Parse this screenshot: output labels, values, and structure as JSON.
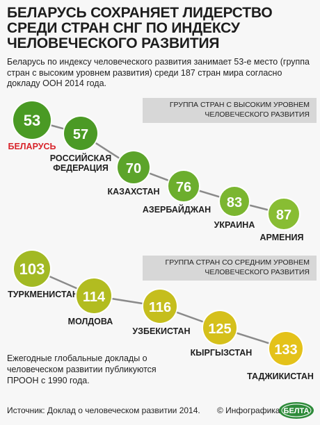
{
  "title": "БЕЛАРУСЬ СОХРАНЯЕТ ЛИДЕРСТВО СРЕДИ СТРАН СНГ ПО ИНДЕКСУ ЧЕЛОВЕЧЕСКОГО РАЗВИТИЯ",
  "subtitle": "Беларусь по индексу человеческого развития занимает 53-е место (группа стран с высоким уровнем развития) среди 187 стран мира согласно докладу ООН 2014 года.",
  "groups": {
    "high": "ГРУППА СТРАН С ВЫСОКИМ УРОВНЕМ ЧЕЛОВЕЧЕСКОГО РАЗВИТИЯ",
    "medium": "ГРУППА СТРАН СО СРЕДНИМ УРОВНЕМ ЧЕЛОВЕЧЕСКОГО РАЗВИТИЯ"
  },
  "note": "Ежегодные глобальные доклады о человеческом развитии публикуются ПРООН с 1990 года.",
  "footer": {
    "source": "Источник: Доклад о человеческом развитии 2014.",
    "credit": "© Инфографика",
    "logo_text": "БЕЛТА"
  },
  "colors": {
    "highlight": "#d8232a",
    "dark_green": "#3d8c1f",
    "light_green": "#8bbf30",
    "olive": "#a6b820",
    "yellow": "#e8c01a",
    "band": "#d7d7d7"
  },
  "chart_data": {
    "type": "scatter",
    "title": "",
    "unit": "rank",
    "series": [
      {
        "name": "ГРУППА СТРАН С ВЫСОКИМ УРОВНЕМ ЧЕЛОВЕЧЕСКОГО РАЗВИТИЯ",
        "points": [
          {
            "country": "БЕЛАРУСЬ",
            "rank": 53,
            "color": "#4a9a24",
            "highlight": true
          },
          {
            "country": "РОССИЙСКАЯ ФЕДЕРАЦИЯ",
            "rank": 57,
            "color": "#4b9a25"
          },
          {
            "country": "КАЗАХСТАН",
            "rank": 70,
            "color": "#5ca42a"
          },
          {
            "country": "АЗЕРБАЙДЖАН",
            "rank": 76,
            "color": "#6cae2d"
          },
          {
            "country": "УКРАИНА",
            "rank": 83,
            "color": "#7bb630"
          },
          {
            "country": "АРМЕНИЯ",
            "rank": 87,
            "color": "#88bd33"
          }
        ]
      },
      {
        "name": "ГРУППА СТРАН СО СРЕДНИМ УРОВНЕМ ЧЕЛОВЕЧЕСКОГО РАЗВИТИЯ",
        "points": [
          {
            "country": "ТУРКМЕНИСТАН",
            "rank": 103,
            "color": "#a2b923"
          },
          {
            "country": "МОЛДОВА",
            "rank": 114,
            "color": "#b2bc20"
          },
          {
            "country": "УЗБЕКИСТАН",
            "rank": 116,
            "color": "#c5be1d"
          },
          {
            "country": "КЫРГЫЗСТАН",
            "rank": 125,
            "color": "#d5c01b"
          },
          {
            "country": "ТАДЖИКИСТАН",
            "rank": 133,
            "color": "#e4c21a"
          }
        ]
      }
    ]
  }
}
